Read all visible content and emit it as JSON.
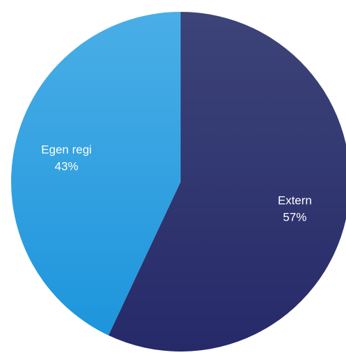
{
  "chart_data": {
    "type": "pie",
    "title": "",
    "start_angle_deg": 0,
    "direction": "clockwise",
    "slices": [
      {
        "label": "Extern",
        "value": 57,
        "value_label": "57%",
        "color": "#262a69",
        "highlight": "#3d4478"
      },
      {
        "label": "Egen regi",
        "value": 43,
        "value_label": "43%",
        "color": "#1d95dc",
        "highlight": "#4aaee6"
      }
    ],
    "legend": "none",
    "data_labels": "inside"
  }
}
